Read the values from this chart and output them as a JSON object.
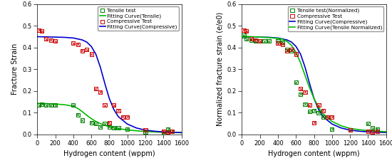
{
  "left": {
    "tensile_x": [
      20,
      50,
      100,
      150,
      200,
      400,
      450,
      500,
      600,
      650,
      700,
      750,
      800,
      850,
      900,
      1000,
      1200,
      1400,
      1450,
      1500
    ],
    "tensile_y": [
      0.135,
      0.14,
      0.135,
      0.135,
      0.135,
      0.135,
      0.09,
      0.065,
      0.055,
      0.05,
      0.035,
      0.05,
      0.035,
      0.03,
      0.03,
      0.025,
      0.01,
      0.0,
      0.025,
      0.015
    ],
    "compressive_x": [
      20,
      50,
      100,
      150,
      200,
      400,
      450,
      500,
      550,
      600,
      650,
      700,
      750,
      800,
      850,
      900,
      950,
      1000,
      1200,
      1400,
      1450,
      1500
    ],
    "compressive_y": [
      0.48,
      0.475,
      0.44,
      0.435,
      0.43,
      0.42,
      0.415,
      0.385,
      0.39,
      0.37,
      0.21,
      0.195,
      0.135,
      0.055,
      0.135,
      0.11,
      0.08,
      0.08,
      0.02,
      0.015,
      0.01,
      0.015
    ],
    "tensile_fit_x": [
      0,
      100,
      200,
      300,
      400,
      450,
      500,
      550,
      600,
      650,
      700,
      750,
      800,
      900,
      1000,
      1100,
      1200,
      1300,
      1400,
      1500,
      1600
    ],
    "tensile_fit_y": [
      0.143,
      0.142,
      0.14,
      0.137,
      0.13,
      0.12,
      0.105,
      0.088,
      0.073,
      0.06,
      0.05,
      0.042,
      0.036,
      0.027,
      0.021,
      0.017,
      0.014,
      0.012,
      0.01,
      0.009,
      0.008
    ],
    "compressive_fit_x": [
      0,
      100,
      200,
      300,
      400,
      500,
      550,
      600,
      650,
      700,
      750,
      800,
      850,
      900,
      1000,
      1100,
      1200,
      1300,
      1400,
      1500,
      1600
    ],
    "compressive_fit_y": [
      0.45,
      0.449,
      0.448,
      0.447,
      0.444,
      0.435,
      0.425,
      0.405,
      0.37,
      0.31,
      0.235,
      0.165,
      0.115,
      0.082,
      0.048,
      0.03,
      0.02,
      0.015,
      0.012,
      0.01,
      0.009
    ],
    "ylabel": "Fracture Strain",
    "xlabel": "Hydrogen content (wppm)",
    "ylim": [
      0,
      0.6
    ],
    "xlim": [
      0,
      1600
    ],
    "yticks": [
      0.0,
      0.1,
      0.2,
      0.3,
      0.4,
      0.5,
      0.6
    ],
    "xticks": [
      0,
      200,
      400,
      600,
      800,
      1000,
      1200,
      1400,
      1600
    ],
    "legend": [
      "Tensile test",
      "Fitting Curve(Tensile)",
      "Compressive Test",
      "Fitting Curve(Compressive)"
    ],
    "tensile_color": "#008000",
    "compressive_color": "#cc0000",
    "tensile_fit_color": "#00bb00",
    "compressive_fit_color": "#0000cc"
  },
  "right": {
    "tensile_norm_x": [
      20,
      50,
      100,
      150,
      200,
      250,
      300,
      400,
      450,
      500,
      550,
      600,
      650,
      700,
      750,
      800,
      850,
      900,
      1000,
      1200,
      1400,
      1450,
      1500
    ],
    "tensile_norm_y": [
      0.455,
      0.44,
      0.435,
      0.43,
      0.43,
      0.43,
      0.43,
      0.43,
      0.425,
      0.39,
      0.385,
      0.24,
      0.185,
      0.14,
      0.105,
      0.11,
      0.1,
      0.08,
      0.025,
      0.02,
      0.05,
      0.03,
      0.025
    ],
    "compressive_x": [
      20,
      50,
      100,
      150,
      200,
      400,
      450,
      500,
      550,
      600,
      650,
      700,
      750,
      800,
      850,
      900,
      950,
      1000,
      1200,
      1400,
      1450,
      1500
    ],
    "compressive_y": [
      0.48,
      0.475,
      0.44,
      0.435,
      0.43,
      0.42,
      0.415,
      0.385,
      0.39,
      0.37,
      0.21,
      0.195,
      0.135,
      0.055,
      0.135,
      0.11,
      0.08,
      0.08,
      0.02,
      0.015,
      0.01,
      0.015
    ],
    "tensile_norm_fit_x": [
      0,
      100,
      200,
      300,
      400,
      450,
      500,
      550,
      600,
      650,
      700,
      750,
      800,
      850,
      900,
      1000,
      1100,
      1200,
      1300,
      1400,
      1500,
      1600
    ],
    "tensile_norm_fit_y": [
      0.452,
      0.45,
      0.448,
      0.446,
      0.442,
      0.438,
      0.428,
      0.41,
      0.378,
      0.33,
      0.272,
      0.215,
      0.165,
      0.125,
      0.095,
      0.06,
      0.04,
      0.028,
      0.022,
      0.018,
      0.015,
      0.013
    ],
    "compressive_fit_x": [
      0,
      100,
      200,
      300,
      400,
      500,
      550,
      600,
      650,
      700,
      750,
      800,
      850,
      900,
      1000,
      1100,
      1200,
      1300,
      1400,
      1500,
      1600
    ],
    "compressive_fit_y": [
      0.45,
      0.449,
      0.448,
      0.447,
      0.444,
      0.435,
      0.425,
      0.405,
      0.37,
      0.31,
      0.235,
      0.165,
      0.115,
      0.082,
      0.048,
      0.03,
      0.02,
      0.015,
      0.012,
      0.01,
      0.009
    ],
    "ylabel": "Normalized fracture strain (e/e0)",
    "xlabel": "Hydrogen content (wppm)",
    "ylim": [
      0,
      0.6
    ],
    "xlim": [
      0,
      1600
    ],
    "yticks": [
      0.0,
      0.1,
      0.2,
      0.3,
      0.4,
      0.5,
      0.6
    ],
    "xticks": [
      0,
      200,
      400,
      600,
      800,
      1000,
      1200,
      1400,
      1600
    ],
    "legend": [
      "Tensile test(Normalized)",
      "Compressive Test",
      "Fitting Curve(Compressive)",
      "Fitting Curve(Tensile Normalized)"
    ],
    "tensile_norm_color": "#008000",
    "compressive_color": "#cc0000",
    "tensile_norm_fit_color": "#00bb00",
    "compressive_fit_color": "#0000cc"
  },
  "bg_color": "#ffffff",
  "plot_bg_color": "#ffffff",
  "marker_size": 14,
  "linewidth": 1.2,
  "fontsize_label": 7,
  "fontsize_tick": 6,
  "fontsize_legend": 5.2
}
